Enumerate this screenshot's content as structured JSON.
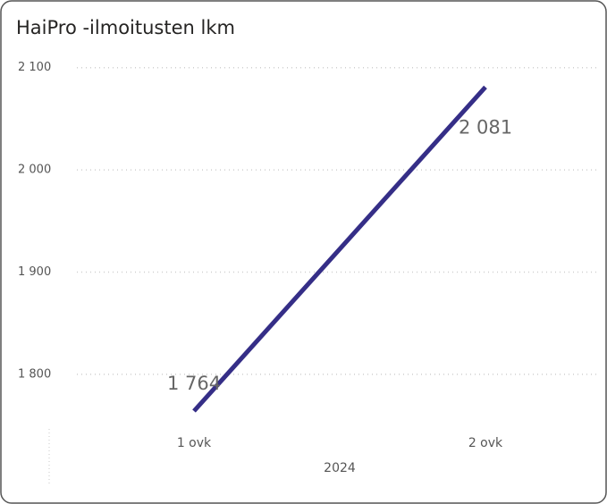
{
  "chart_data": {
    "type": "line",
    "title": "HaiPro -ilmoitusten lkm",
    "categories": [
      "1 ovk",
      "2 ovk"
    ],
    "x_label": "2024",
    "series": [
      {
        "name": "HaiPro -ilmoitusten lkm",
        "color": "#352e87",
        "values": [
          1764,
          2081
        ],
        "value_labels": [
          "1 764",
          "2 081"
        ]
      }
    ],
    "ylim": [
      1750,
      2112
    ],
    "yticks": [
      {
        "value": 1800,
        "label": "1 800"
      },
      {
        "value": 1900,
        "label": "1 900"
      },
      {
        "value": 2000,
        "label": "2 000"
      },
      {
        "value": 2100,
        "label": "2 100"
      }
    ],
    "grid": true
  }
}
